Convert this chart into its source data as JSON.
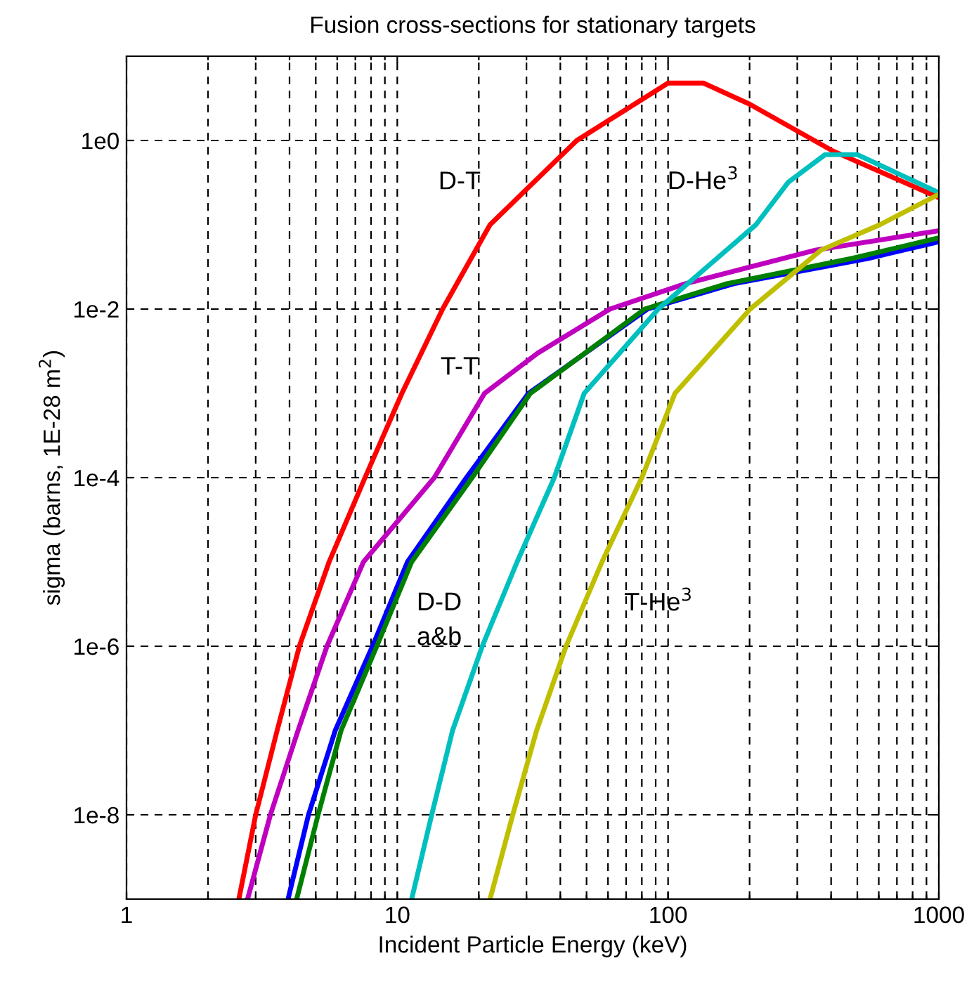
{
  "chart_data": {
    "type": "line",
    "title": "Fusion cross-sections for stationary targets",
    "xlabel": "Incident Particle Energy (keV)",
    "ylabel": "sigma (barns, 1E-28 m$^{2}$)",
    "log": "xy",
    "grid": true,
    "line_style": "solid",
    "marker": "none",
    "xlim": [
      1,
      1000
    ],
    "ylim": [
      1e-09,
      10
    ],
    "xticks": [
      1,
      {
        "value": 2,
        "label": null
      },
      {
        "value": 3,
        "label": null
      },
      {
        "value": 4,
        "label": null
      },
      {
        "value": 5,
        "label": null
      },
      {
        "value": 6,
        "label": null
      },
      {
        "value": 7,
        "label": null
      },
      {
        "value": 8,
        "label": null
      },
      {
        "value": 9,
        "label": null
      },
      10,
      {
        "value": 20,
        "label": null
      },
      {
        "value": 30,
        "label": null
      },
      {
        "value": 40,
        "label": null
      },
      {
        "value": 50,
        "label": null
      },
      {
        "value": 60,
        "label": null
      },
      {
        "value": 70,
        "label": null
      },
      {
        "value": 80,
        "label": null
      },
      {
        "value": 90,
        "label": null
      },
      100,
      {
        "value": 200,
        "label": null
      },
      {
        "value": 300,
        "label": null
      },
      {
        "value": 400,
        "label": null
      },
      {
        "value": 500,
        "label": null
      },
      {
        "value": 600,
        "label": null
      },
      {
        "value": 700,
        "label": null
      },
      {
        "value": 800,
        "label": null
      },
      {
        "value": 900,
        "label": null
      },
      1000
    ],
    "yticks": [
      {
        "value": 1e-08,
        "label": "1e-8"
      },
      {
        "value": 1e-06,
        "label": "1e-6"
      },
      {
        "value": 0.0001,
        "label": "1e-4"
      },
      {
        "value": 0.01,
        "label": "1e-2"
      },
      {
        "value": 1,
        "label": "1e0"
      }
    ],
    "series": [
      {
        "name": "D-T",
        "color": "#ff0000",
        "x": [
          2.6,
          3.0,
          3.6,
          4.35,
          5.6,
          7.6,
          10.4,
          14.7,
          22,
          46,
          100,
          135,
          200,
          403,
          1000
        ],
        "values": [
          1e-09,
          1e-08,
          1e-07,
          1e-06,
          1e-05,
          0.0001,
          0.001,
          0.01,
          0.1,
          1,
          4.8,
          4.8,
          2.7,
          0.76,
          0.21
        ]
      },
      {
        "name": "T-T",
        "color": "#bf00bf",
        "x": [
          2.8,
          3.4,
          4.3,
          5.5,
          7.5,
          13.7,
          21,
          33,
          61,
          116,
          350,
          1000
        ],
        "values": [
          1e-09,
          1e-08,
          1e-07,
          1e-06,
          1e-05,
          0.0001,
          0.001,
          0.003,
          0.01,
          0.02,
          0.05,
          0.085
        ]
      },
      {
        "name": "D-D\na&b",
        "color": "#0000ff",
        "x": [
          3.95,
          4.7,
          5.9,
          8.1,
          10.9,
          18,
          30.5,
          84,
          175,
          550,
          1000
        ],
        "values": [
          1e-09,
          1e-08,
          1e-07,
          1e-06,
          1e-05,
          0.0001,
          0.001,
          0.01,
          0.02,
          0.04,
          0.063
        ]
      },
      {
        "color": "#008000",
        "x": [
          4.25,
          5.1,
          6.2,
          8.4,
          11.3,
          18.9,
          31,
          82,
          165,
          480,
          1000
        ],
        "values": [
          1e-09,
          1e-08,
          1e-07,
          1e-06,
          1e-05,
          0.0001,
          0.001,
          0.01,
          0.02,
          0.04,
          0.07
        ]
      },
      {
        "name": "D-He$^{3}$",
        "color": "#00bfbf",
        "x": [
          11.3,
          13.4,
          16,
          20.6,
          27.7,
          38,
          49,
          92,
          211,
          278,
          380,
          500,
          1000
        ],
        "values": [
          1e-09,
          1e-08,
          1e-07,
          1e-06,
          1e-05,
          0.0001,
          0.001,
          0.01,
          0.1,
          0.32,
          0.68,
          0.68,
          0.24
        ]
      },
      {
        "name": "T-He$^{3}$",
        "color": "#bfbf00",
        "x": [
          22,
          26.7,
          32.7,
          42,
          57,
          80,
          106,
          201,
          367,
          605,
          1000
        ],
        "values": [
          1e-09,
          1e-08,
          1e-07,
          1e-06,
          1e-05,
          0.0001,
          0.001,
          0.01,
          0.05,
          0.1,
          0.23
        ]
      }
    ]
  }
}
